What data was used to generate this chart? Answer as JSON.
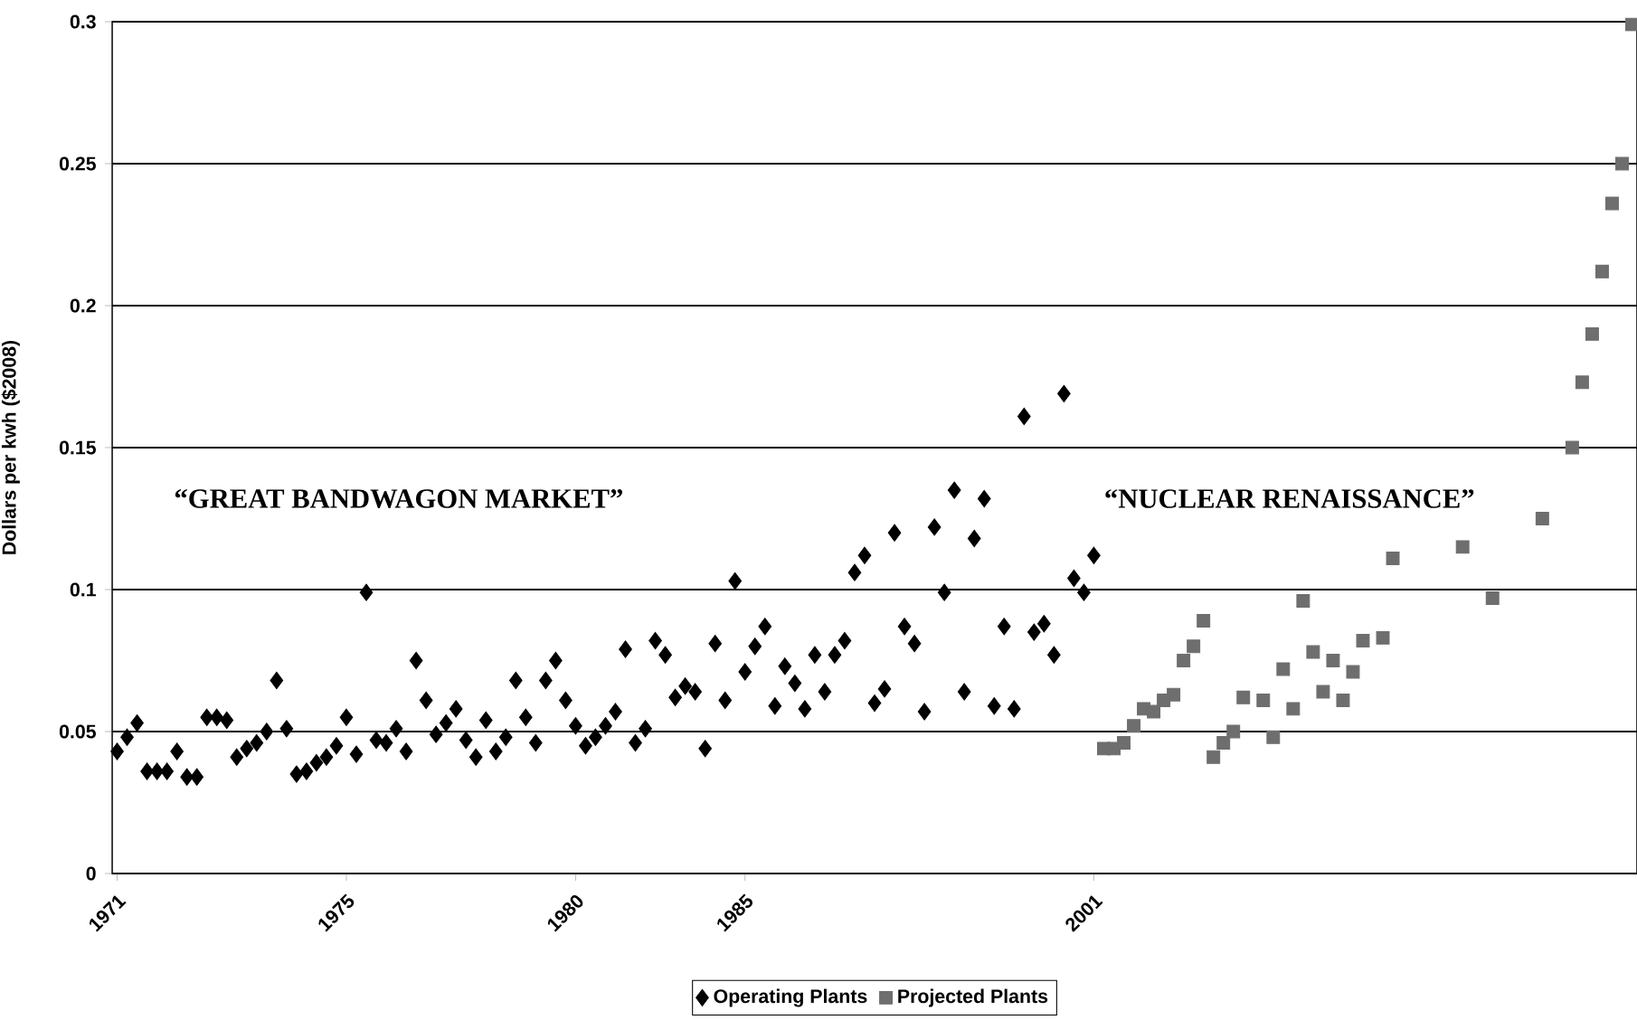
{
  "chart_data": {
    "type": "scatter",
    "ylabel": "Dollars per kwh ($2008)",
    "annotations": [
      "“GREAT BANDWAGON MARKET”",
      "“NUCLEAR RENAISSANCE”"
    ],
    "categories": [
      "1971",
      null,
      null,
      null,
      null,
      null,
      null,
      null,
      null,
      null,
      null,
      null,
      null,
      null,
      null,
      null,
      null,
      null,
      null,
      null,
      null,
      null,
      null,
      "1975",
      null,
      null,
      null,
      null,
      null,
      null,
      null,
      null,
      null,
      null,
      null,
      null,
      null,
      null,
      null,
      null,
      null,
      null,
      null,
      null,
      null,
      null,
      "1980",
      null,
      null,
      null,
      null,
      null,
      null,
      null,
      null,
      null,
      null,
      null,
      null,
      null,
      null,
      null,
      null,
      "1985",
      null,
      null,
      null,
      null,
      null,
      null,
      null,
      null,
      null,
      null,
      null,
      null,
      null,
      null,
      null,
      null,
      null,
      null,
      null,
      null,
      null,
      null,
      null,
      null,
      null,
      null,
      null,
      null,
      null,
      null,
      null,
      null,
      null,
      null,
      "2001",
      null,
      null,
      null,
      null,
      null,
      null,
      null,
      null,
      null,
      null,
      null,
      null,
      null,
      null,
      null,
      null,
      null,
      null,
      null,
      null,
      null,
      null,
      null,
      null,
      null,
      null,
      null,
      null,
      null,
      null,
      null,
      null,
      null,
      null,
      null,
      null,
      null,
      null,
      null,
      null,
      null,
      null,
      null,
      null,
      null,
      null,
      null,
      null,
      null,
      null,
      null,
      null,
      null,
      null
    ],
    "ylim": [
      0,
      0.3
    ],
    "yticks": [
      0,
      0.05,
      0.1,
      0.15,
      0.2,
      0.25,
      0.3
    ],
    "grid": "y",
    "legend": "bottom",
    "series": [
      {
        "name": "Operating Plants",
        "color": "#000000",
        "marker": "diamond",
        "values": [
          0.043,
          0.048,
          0.053,
          0.036,
          0.036,
          0.036,
          0.043,
          0.034,
          0.034,
          0.055,
          0.055,
          0.054,
          0.041,
          0.044,
          0.046,
          0.05,
          0.068,
          0.051,
          0.035,
          0.036,
          0.039,
          0.041,
          0.045,
          0.055,
          0.042,
          0.099,
          0.047,
          0.046,
          0.051,
          0.043,
          0.075,
          0.061,
          0.049,
          0.053,
          0.058,
          0.047,
          0.041,
          0.054,
          0.043,
          0.048,
          0.068,
          0.055,
          0.046,
          0.068,
          0.075,
          0.061,
          0.052,
          0.045,
          0.048,
          0.052,
          0.057,
          0.079,
          0.046,
          0.051,
          0.082,
          0.077,
          0.062,
          0.066,
          0.064,
          0.044,
          0.081,
          0.061,
          0.103,
          0.071,
          0.08,
          0.087,
          0.059,
          0.073,
          0.067,
          0.058,
          0.077,
          0.064,
          0.077,
          0.082,
          0.106,
          0.112,
          0.06,
          0.065,
          0.12,
          0.087,
          0.081,
          0.057,
          0.122,
          0.099,
          0.135,
          0.064,
          0.118,
          0.132,
          0.059,
          0.087,
          0.058,
          0.161,
          0.085,
          0.088,
          0.077,
          0.169,
          0.104,
          0.099,
          0.112,
          null,
          null,
          null,
          null,
          null,
          null,
          null,
          null,
          null,
          null,
          null,
          null,
          null,
          null,
          null,
          null,
          null,
          null,
          null,
          null,
          null,
          null,
          null,
          null,
          null,
          null,
          null,
          null,
          null,
          null,
          null,
          null,
          null,
          null,
          null,
          null,
          null,
          null,
          null,
          null,
          null,
          null,
          null,
          null,
          null,
          null,
          null,
          null,
          null,
          null,
          null,
          null,
          null,
          null
        ]
      },
      {
        "name": "Projected Plants",
        "color": "#6e6e6e",
        "marker": "square",
        "values": [
          null,
          null,
          null,
          null,
          null,
          null,
          null,
          null,
          null,
          null,
          null,
          null,
          null,
          null,
          null,
          null,
          null,
          null,
          null,
          null,
          null,
          null,
          null,
          null,
          null,
          null,
          null,
          null,
          null,
          null,
          null,
          null,
          null,
          null,
          null,
          null,
          null,
          null,
          null,
          null,
          null,
          null,
          null,
          null,
          null,
          null,
          null,
          null,
          null,
          null,
          null,
          null,
          null,
          null,
          null,
          null,
          null,
          null,
          null,
          null,
          null,
          null,
          null,
          null,
          null,
          null,
          null,
          null,
          null,
          null,
          null,
          null,
          null,
          null,
          null,
          null,
          null,
          null,
          null,
          null,
          null,
          null,
          null,
          null,
          null,
          null,
          null,
          null,
          null,
          null,
          null,
          null,
          null,
          null,
          null,
          null,
          null,
          null,
          null,
          0.044,
          0.044,
          0.046,
          0.052,
          0.058,
          0.057,
          0.061,
          0.063,
          0.075,
          0.08,
          0.089,
          0.041,
          0.046,
          0.05,
          0.062,
          null,
          0.061,
          0.048,
          0.072,
          0.058,
          0.096,
          0.078,
          0.064,
          0.075,
          0.061,
          0.071,
          0.082,
          null,
          0.083,
          0.111,
          null,
          null,
          null,
          null,
          null,
          null,
          0.115,
          null,
          null,
          0.097,
          null,
          null,
          null,
          null,
          0.125,
          null,
          null,
          0.15,
          0.173,
          0.19,
          0.212,
          0.236,
          0.25,
          0.299
        ]
      }
    ]
  }
}
